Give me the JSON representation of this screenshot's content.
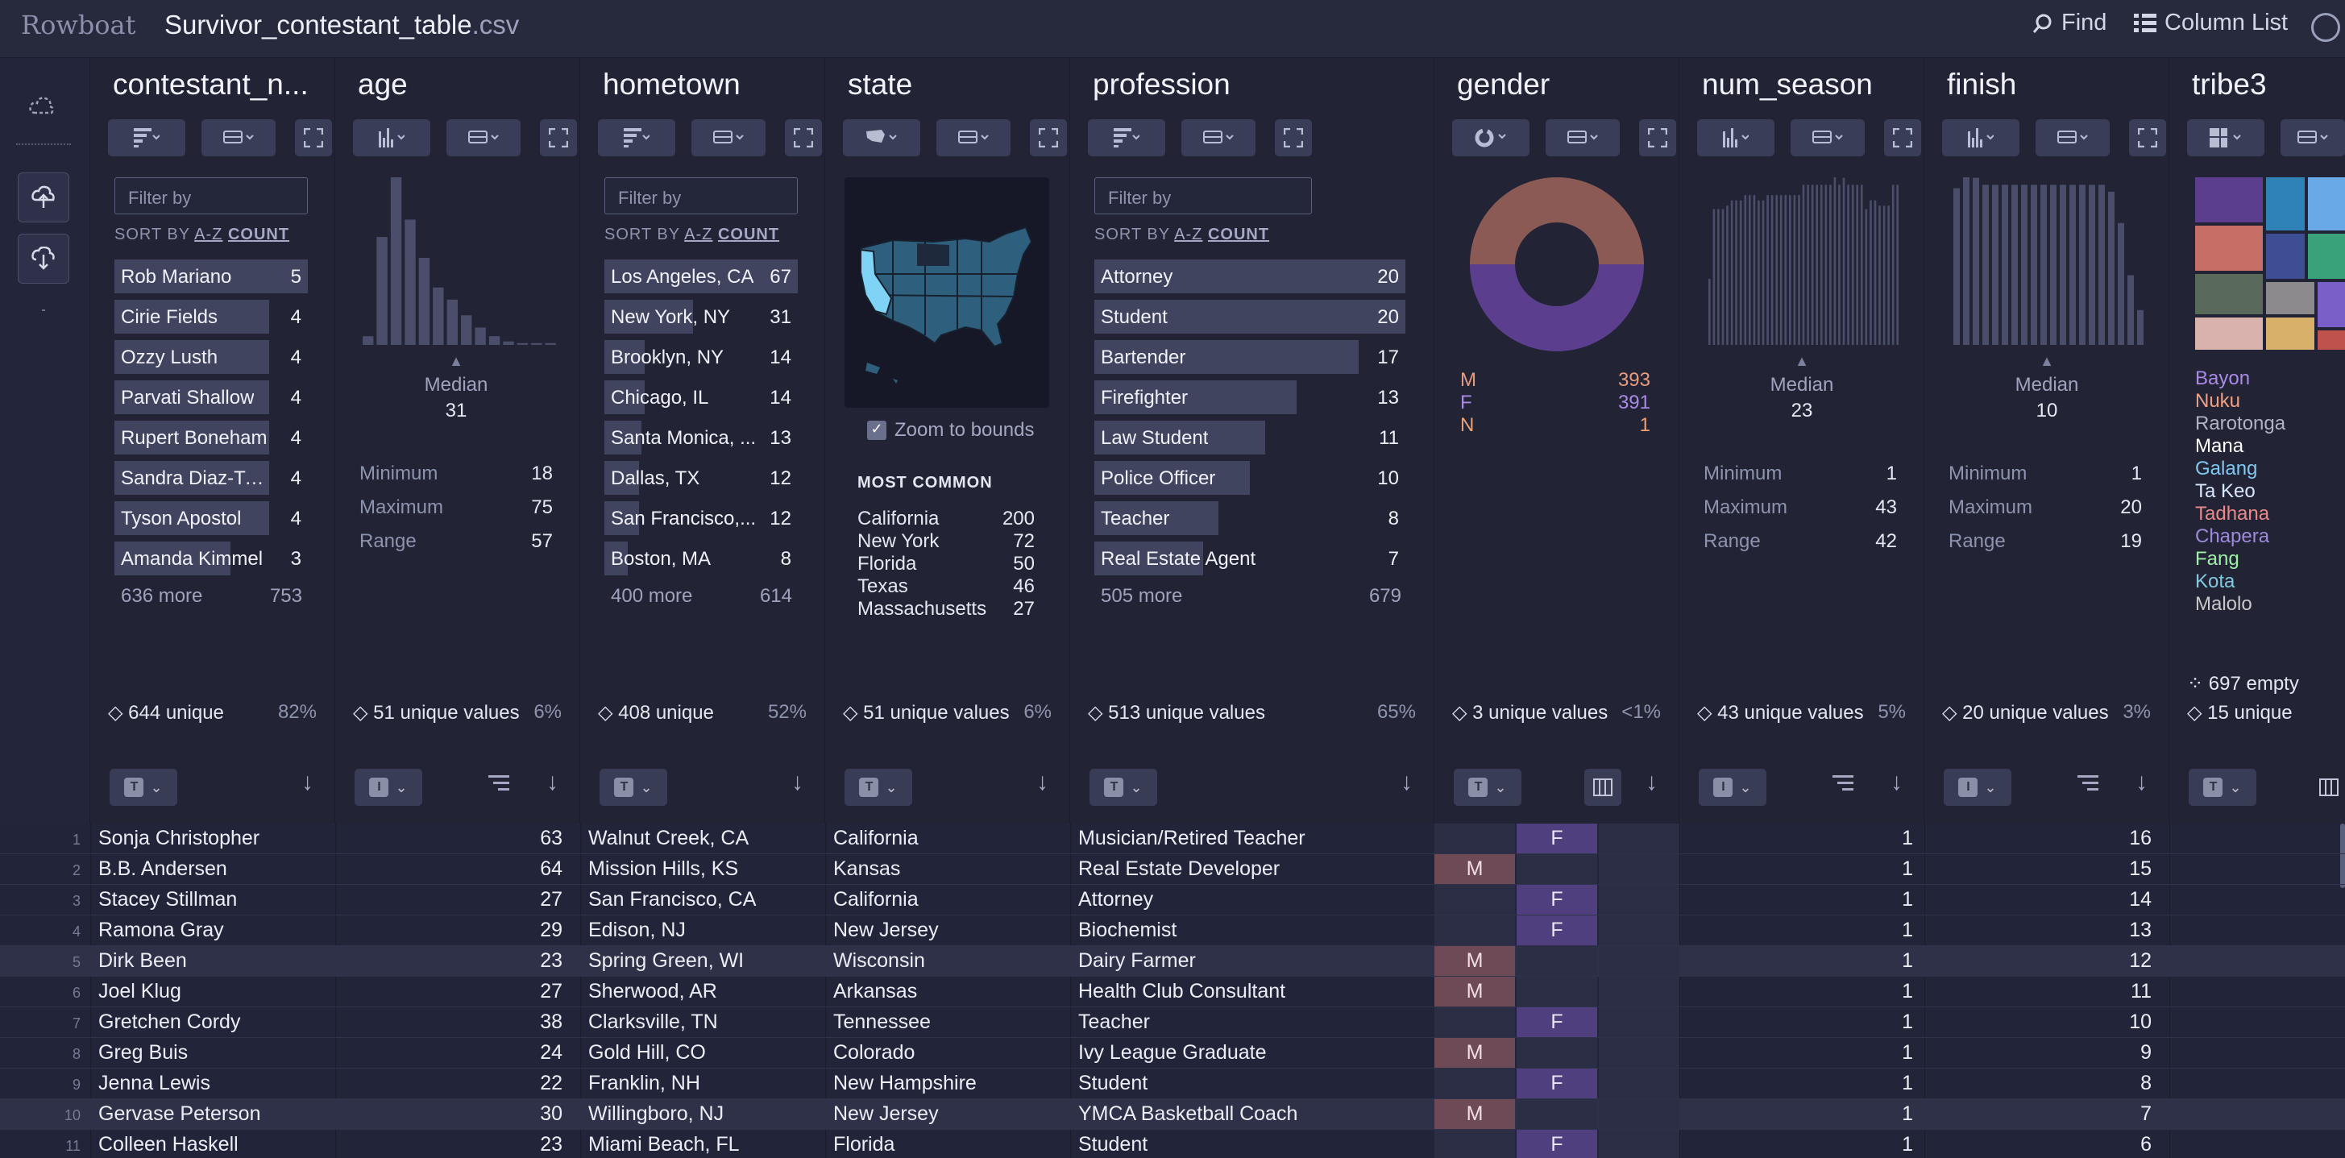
{
  "app": {
    "logo": "Rowboat",
    "file_name": "Survivor_contestant_table",
    "file_ext": ".csv",
    "find_label": "Find",
    "column_list_label": "Column List"
  },
  "colors": {
    "accent_purple": "#5b3f8e",
    "accent_salmon": "#8b5a55",
    "map_highlight": "#7fd3f5",
    "bar": "#40445f"
  },
  "columns": {
    "contestant": {
      "name": "contestant_n...",
      "filter_placeholder": "Filter by",
      "sort_label": "SORT BY",
      "sort_az": "A-Z",
      "sort_count": "COUNT",
      "values": [
        {
          "label": "Rob Mariano",
          "count": "5",
          "frac": 1.0
        },
        {
          "label": "Cirie Fields",
          "count": "4",
          "frac": 0.8
        },
        {
          "label": "Ozzy Lusth",
          "count": "4",
          "frac": 0.8
        },
        {
          "label": "Parvati Shallow",
          "count": "4",
          "frac": 0.8
        },
        {
          "label": "Rupert Boneham",
          "count": "4",
          "frac": 0.8
        },
        {
          "label": "Sandra Diaz-Twi...",
          "count": "4",
          "frac": 0.8
        },
        {
          "label": "Tyson Apostol",
          "count": "4",
          "frac": 0.8
        },
        {
          "label": "Amanda Kimmel",
          "count": "3",
          "frac": 0.6
        }
      ],
      "more": "636 more",
      "more_count": "753",
      "unique": "644 unique",
      "unique_pct": "82%",
      "type": "T"
    },
    "age": {
      "name": "age",
      "median_label": "Median",
      "median": "31",
      "stats": [
        [
          "Minimum",
          "18"
        ],
        [
          "Maximum",
          "75"
        ],
        [
          "Range",
          "57"
        ]
      ],
      "hist": [
        0.05,
        0.62,
        1.0,
        0.72,
        0.5,
        0.33,
        0.26,
        0.17,
        0.1,
        0.05,
        0.02,
        0.01,
        0.01,
        0.01
      ],
      "unique": "51 unique values",
      "unique_pct": "6%",
      "type": "I"
    },
    "hometown": {
      "name": "hometown",
      "filter_placeholder": "Filter by",
      "sort_label": "SORT BY",
      "sort_az": "A-Z",
      "sort_count": "COUNT",
      "values": [
        {
          "label": "Los Angeles, CA",
          "count": "67",
          "frac": 1.0
        },
        {
          "label": "New York, NY",
          "count": "31",
          "frac": 0.46
        },
        {
          "label": "Brooklyn, NY",
          "count": "14",
          "frac": 0.21
        },
        {
          "label": "Chicago, IL",
          "count": "14",
          "frac": 0.21
        },
        {
          "label": "Santa Monica, ...",
          "count": "13",
          "frac": 0.19
        },
        {
          "label": "Dallas, TX",
          "count": "12",
          "frac": 0.18
        },
        {
          "label": "San Francisco,...",
          "count": "12",
          "frac": 0.18
        },
        {
          "label": "Boston, MA",
          "count": "8",
          "frac": 0.12
        }
      ],
      "more": "400 more",
      "more_count": "614",
      "unique": "408 unique",
      "unique_pct": "52%",
      "type": "T"
    },
    "state": {
      "name": "state",
      "zoom_label": "Zoom to bounds",
      "most_common_label": "MOST COMMON",
      "most_common": [
        [
          "California",
          "200"
        ],
        [
          "New York",
          "72"
        ],
        [
          "Florida",
          "50"
        ],
        [
          "Texas",
          "46"
        ],
        [
          "Massachusetts",
          "27"
        ]
      ],
      "unique": "51 unique values",
      "unique_pct": "6%",
      "type": "T"
    },
    "profession": {
      "name": "profession",
      "filter_placeholder": "Filter by",
      "sort_label": "SORT BY",
      "sort_az": "A-Z",
      "sort_count": "COUNT",
      "values": [
        {
          "label": "Attorney",
          "count": "20",
          "frac": 1.0
        },
        {
          "label": "Student",
          "count": "20",
          "frac": 1.0
        },
        {
          "label": "Bartender",
          "count": "17",
          "frac": 0.85
        },
        {
          "label": "Firefighter",
          "count": "13",
          "frac": 0.65
        },
        {
          "label": "Law Student",
          "count": "11",
          "frac": 0.55
        },
        {
          "label": "Police Officer",
          "count": "10",
          "frac": 0.5
        },
        {
          "label": "Teacher",
          "count": "8",
          "frac": 0.4
        },
        {
          "label": "Real Estate Agent",
          "count": "7",
          "frac": 0.35
        }
      ],
      "more": "505 more",
      "more_count": "679",
      "unique": "513 unique values",
      "unique_pct": "65%",
      "type": "T"
    },
    "gender": {
      "name": "gender",
      "legend": [
        [
          "M",
          "393",
          "#e79c7e"
        ],
        [
          "F",
          "391",
          "#a98be6"
        ],
        [
          "N",
          "1",
          "#f0a070"
        ]
      ],
      "unique": "3 unique values",
      "unique_pct": "<1%",
      "type": "T"
    },
    "num_season": {
      "name": "num_season",
      "median_label": "Median",
      "median": "23",
      "stats": [
        [
          "Minimum",
          "1"
        ],
        [
          "Maximum",
          "43"
        ],
        [
          "Range",
          "42"
        ]
      ],
      "hist": [
        0.38,
        0.78,
        0.78,
        0.78,
        0.8,
        0.83,
        0.83,
        0.83,
        0.86,
        0.86,
        0.86,
        0.83,
        0.83,
        0.86,
        0.86,
        0.86,
        0.86,
        0.86,
        0.86,
        0.86,
        0.86,
        0.92,
        0.92,
        0.92,
        0.92,
        0.92,
        0.92,
        0.92,
        1.0,
        0.92,
        0.96,
        0.92,
        0.92,
        0.92,
        0.92,
        0.78,
        0.83,
        0.83,
        0.8,
        0.8,
        0.8,
        0.92,
        0.92
      ],
      "unique": "43 unique values",
      "unique_pct": "5%",
      "type": "I"
    },
    "finish": {
      "name": "finish",
      "median_label": "Median",
      "median": "10",
      "stats": [
        [
          "Minimum",
          "1"
        ],
        [
          "Maximum",
          "20"
        ],
        [
          "Range",
          "19"
        ]
      ],
      "hist": [
        0.9,
        1.0,
        0.96,
        0.92,
        0.92,
        0.92,
        0.92,
        0.92,
        0.92,
        0.92,
        0.92,
        0.92,
        0.92,
        0.92,
        0.92,
        0.92,
        0.88,
        0.7,
        0.4,
        0.2
      ],
      "unique": "20 unique values",
      "unique_pct": "3%",
      "type": "I"
    },
    "tribe3": {
      "name": "tribe3",
      "empty": "697 empty",
      "unique": "15 unique",
      "type": "T",
      "legend": [
        [
          "Bayon",
          "#a98be6"
        ],
        [
          "Nuku",
          "#f0a080"
        ],
        [
          "Rarotonga",
          "#b0b3c6"
        ],
        [
          "Mana",
          "#ffffff"
        ],
        [
          "Galang",
          "#7fc8f0"
        ],
        [
          "Ta Keo",
          "#d8e8ff"
        ],
        [
          "Tadhana",
          "#e98a8a"
        ],
        [
          "Chapera",
          "#9e8ad8"
        ],
        [
          "Fang",
          "#9ef0a8"
        ],
        [
          "Kota",
          "#7ecbe0"
        ],
        [
          "Malolo",
          "#c8c8c8"
        ]
      ]
    }
  },
  "rows": [
    {
      "n": "1",
      "name": "Sonja Christopher",
      "age": "63",
      "home": "Walnut Creek,  CA",
      "state": "California",
      "prof": "Musician/Retired Teacher",
      "g": "F",
      "season": "1",
      "finish": "16"
    },
    {
      "n": "2",
      "name": "B.B. Andersen",
      "age": "64",
      "home": "Mission Hills,  KS",
      "state": "Kansas",
      "prof": "Real Estate Developer",
      "g": "M",
      "season": "1",
      "finish": "15"
    },
    {
      "n": "3",
      "name": "Stacey Stillman",
      "age": "27",
      "home": "San Francisco,  CA",
      "state": "California",
      "prof": "Attorney",
      "g": "F",
      "season": "1",
      "finish": "14"
    },
    {
      "n": "4",
      "name": "Ramona Gray",
      "age": "29",
      "home": "Edison,  NJ",
      "state": "New Jersey",
      "prof": "Biochemist",
      "g": "F",
      "season": "1",
      "finish": "13"
    },
    {
      "n": "5",
      "name": "Dirk Been",
      "age": "23",
      "home": "Spring Green,  WI",
      "state": "Wisconsin",
      "prof": "Dairy Farmer",
      "g": "M",
      "season": "1",
      "finish": "12"
    },
    {
      "n": "6",
      "name": "Joel Klug",
      "age": "27",
      "home": "Sherwood,  AR",
      "state": "Arkansas",
      "prof": "Health Club Consultant",
      "g": "M",
      "season": "1",
      "finish": "11"
    },
    {
      "n": "7",
      "name": "Gretchen Cordy",
      "age": "38",
      "home": "Clarksville,  TN",
      "state": "Tennessee",
      "prof": "Teacher",
      "g": "F",
      "season": "1",
      "finish": "10"
    },
    {
      "n": "8",
      "name": "Greg Buis",
      "age": "24",
      "home": "Gold Hill,  CO",
      "state": "Colorado",
      "prof": "Ivy League Graduate",
      "g": "M",
      "season": "1",
      "finish": "9"
    },
    {
      "n": "9",
      "name": "Jenna Lewis",
      "age": "22",
      "home": "Franklin,  NH",
      "state": "New Hampshire",
      "prof": "Student",
      "g": "F",
      "season": "1",
      "finish": "8"
    },
    {
      "n": "10",
      "name": "Gervase Peterson",
      "age": "30",
      "home": "Willingboro,  NJ",
      "state": "New Jersey",
      "prof": "YMCA Basketball Coach",
      "g": "M",
      "season": "1",
      "finish": "7"
    },
    {
      "n": "11",
      "name": "Colleen Haskell",
      "age": "23",
      "home": "Miami Beach,  FL",
      "state": "Florida",
      "prof": "Student",
      "g": "F",
      "season": "1",
      "finish": "6"
    }
  ]
}
